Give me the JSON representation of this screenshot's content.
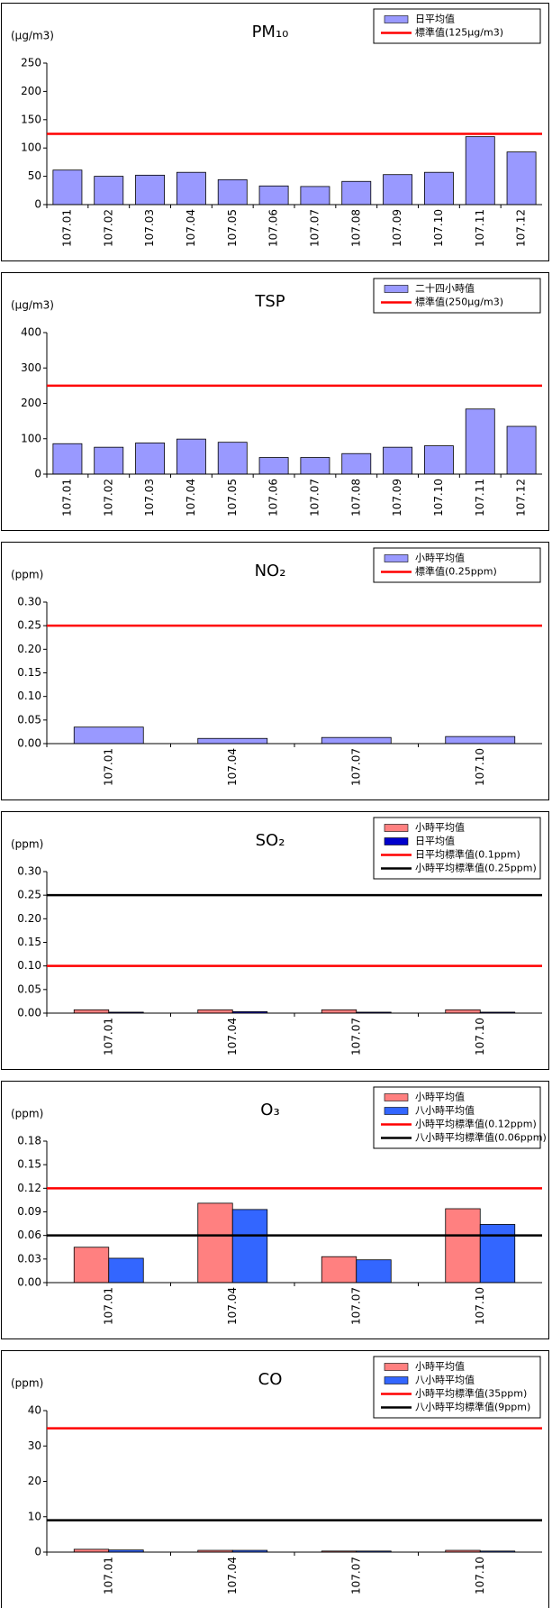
{
  "chart_data": [
    {
      "type": "bar",
      "title": "PM₁₀",
      "y_label": "(μg/m3)",
      "categories": [
        "107.01",
        "107.02",
        "107.03",
        "107.04",
        "107.05",
        "107.06",
        "107.07",
        "107.08",
        "107.09",
        "107.10",
        "107.11",
        "107.12"
      ],
      "series": [
        {
          "name": "日平均值",
          "color": "#9999ff",
          "values": [
            61,
            50,
            52,
            57,
            44,
            33,
            32,
            41,
            53,
            57,
            120,
            93
          ]
        }
      ],
      "lines": [
        {
          "name": "標準值(125μg/m3)",
          "color": "#ff0000",
          "value": 125
        }
      ],
      "ylim": [
        0,
        250
      ],
      "yticks": [
        0,
        50,
        100,
        150,
        200,
        250
      ]
    },
    {
      "type": "bar",
      "title": "TSP",
      "y_label": "(μg/m3)",
      "categories": [
        "107.01",
        "107.02",
        "107.03",
        "107.04",
        "107.05",
        "107.06",
        "107.07",
        "107.08",
        "107.09",
        "107.10",
        "107.11",
        "107.12"
      ],
      "series": [
        {
          "name": "二十四小時值",
          "color": "#9999ff",
          "values": [
            86,
            76,
            88,
            99,
            90,
            47,
            47,
            58,
            76,
            80,
            184,
            135
          ]
        }
      ],
      "lines": [
        {
          "name": "標準值(250μg/m3)",
          "color": "#ff0000",
          "value": 250
        }
      ],
      "ylim": [
        0,
        400
      ],
      "yticks": [
        0,
        100,
        200,
        300,
        400
      ]
    },
    {
      "type": "bar",
      "title": "NO₂",
      "y_label": "(ppm)",
      "categories": [
        "107.01",
        "107.04",
        "107.07",
        "107.10"
      ],
      "series": [
        {
          "name": "小時平均值",
          "color": "#9999ff",
          "values": [
            0.035,
            0.011,
            0.013,
            0.015
          ]
        }
      ],
      "lines": [
        {
          "name": "標準值(0.25ppm)",
          "color": "#ff0000",
          "value": 0.25
        }
      ],
      "ylim": [
        0,
        0.3
      ],
      "yticks": [
        {
          "value": 0,
          "label": "0.00"
        },
        {
          "value": 0.05,
          "label": "0.05"
        },
        {
          "value": 0.1,
          "label": "0.10"
        },
        {
          "value": 0.15,
          "label": "0.15"
        },
        {
          "value": 0.2,
          "label": "0.20"
        },
        {
          "value": 0.25,
          "label": "0.25"
        },
        {
          "value": 0.3,
          "label": "0.30"
        }
      ]
    },
    {
      "type": "bar",
      "title": "SO₂",
      "y_label": "(ppm)",
      "categories": [
        "107.01",
        "107.04",
        "107.07",
        "107.10"
      ],
      "series": [
        {
          "name": "小時平均值",
          "color": "#ff8080",
          "values": [
            0.007,
            0.007,
            0.007,
            0.007
          ]
        },
        {
          "name": "日平均值",
          "color": "#0000cc",
          "values": [
            0.002,
            0.003,
            0.002,
            0.002
          ]
        }
      ],
      "lines": [
        {
          "name": "日平均標準值(0.1ppm)",
          "color": "#ff0000",
          "value": 0.1
        },
        {
          "name": "小時平均標準值(0.25ppm)",
          "color": "#000000",
          "value": 0.25
        }
      ],
      "ylim": [
        0,
        0.3
      ],
      "yticks": [
        {
          "value": 0,
          "label": "0.00"
        },
        {
          "value": 0.05,
          "label": "0.05"
        },
        {
          "value": 0.1,
          "label": "0.10"
        },
        {
          "value": 0.15,
          "label": "0.15"
        },
        {
          "value": 0.2,
          "label": "0.20"
        },
        {
          "value": 0.25,
          "label": "0.25"
        },
        {
          "value": 0.3,
          "label": "0.30"
        }
      ]
    },
    {
      "type": "bar",
      "title": "O₃",
      "y_label": "(ppm)",
      "categories": [
        "107.01",
        "107.04",
        "107.07",
        "107.10"
      ],
      "series": [
        {
          "name": "小時平均值",
          "color": "#ff8080",
          "values": [
            0.045,
            0.101,
            0.033,
            0.094
          ]
        },
        {
          "name": "八小時平均值",
          "color": "#3366ff",
          "values": [
            0.031,
            0.093,
            0.029,
            0.074
          ]
        }
      ],
      "lines": [
        {
          "name": "小時平均標準值(0.12ppm)",
          "color": "#ff0000",
          "value": 0.12
        },
        {
          "name": "八小時平均標準值(0.06ppm)",
          "color": "#000000",
          "value": 0.06
        }
      ],
      "ylim": [
        0,
        0.18
      ],
      "yticks": [
        {
          "value": 0,
          "label": "0.00"
        },
        {
          "value": 0.03,
          "label": "0.03"
        },
        {
          "value": 0.06,
          "label": "0.06"
        },
        {
          "value": 0.09,
          "label": "0.09"
        },
        {
          "value": 0.12,
          "label": "0.12"
        },
        {
          "value": 0.15,
          "label": "0.15"
        },
        {
          "value": 0.18,
          "label": "0.18"
        }
      ]
    },
    {
      "type": "bar",
      "title": "CO",
      "y_label": "(ppm)",
      "categories": [
        "107.01",
        "107.04",
        "107.07",
        "107.10"
      ],
      "series": [
        {
          "name": "小時平均值",
          "color": "#ff8080",
          "values": [
            0.8,
            0.5,
            0.3,
            0.5
          ]
        },
        {
          "name": "八小時平均值",
          "color": "#3366ff",
          "values": [
            0.6,
            0.5,
            0.3,
            0.3
          ]
        }
      ],
      "lines": [
        {
          "name": "小時平均標準值(35ppm)",
          "color": "#ff0000",
          "value": 35
        },
        {
          "name": "八小時平均標準值(9ppm)",
          "color": "#000000",
          "value": 9
        }
      ],
      "ylim": [
        0,
        40
      ],
      "yticks": [
        0,
        10,
        20,
        30,
        40
      ]
    }
  ]
}
